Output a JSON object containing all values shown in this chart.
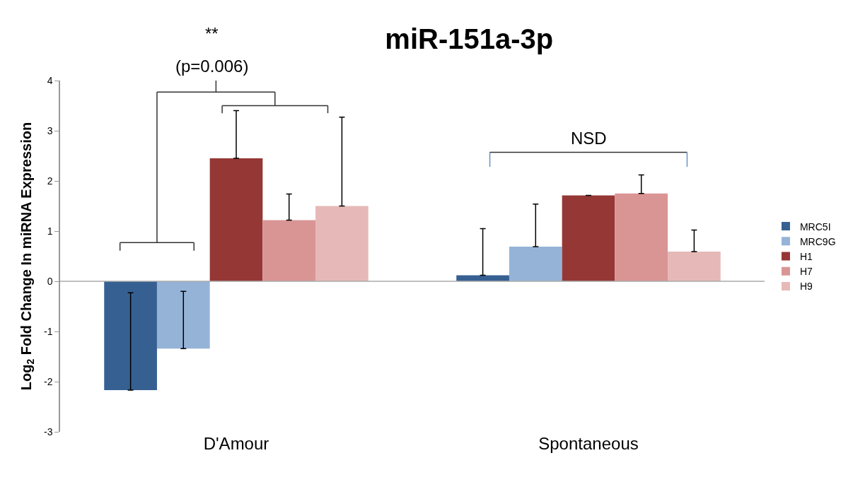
{
  "chart_data": {
    "type": "bar",
    "title": "miR-151a-3p",
    "ylabel": "Log$_{2}$ Fold Change In miRNA Expression",
    "categories": [
      "D'Amour",
      "Spontaneous"
    ],
    "series": [
      {
        "name": "MRC5I",
        "color": "#376092",
        "values": [
          -2.17,
          0.12
        ],
        "errors": [
          [
            -2.17,
            -0.23
          ],
          [
            0.12,
            1.05
          ]
        ]
      },
      {
        "name": "MRC9G",
        "color": "#95b3d7",
        "values": [
          -1.34,
          0.69
        ],
        "errors": [
          [
            -1.34,
            -0.2
          ],
          [
            0.69,
            1.54
          ]
        ]
      },
      {
        "name": "H1",
        "color": "#953735",
        "values": [
          2.45,
          1.71
        ],
        "errors": [
          [
            2.45,
            3.4
          ],
          null
        ]
      },
      {
        "name": "H7",
        "color": "#d99594",
        "values": [
          1.22,
          1.75
        ],
        "errors": [
          [
            1.22,
            1.74
          ],
          [
            1.75,
            2.12
          ]
        ]
      },
      {
        "name": "H9",
        "color": "#e6b9b8",
        "values": [
          1.5,
          0.59
        ],
        "errors": [
          [
            1.5,
            3.27
          ],
          [
            0.59,
            1.02
          ]
        ]
      }
    ],
    "ref_lines": [
      {
        "axis": "y",
        "value": 0,
        "color": "#aaaaaa"
      }
    ],
    "ylim": [
      -3,
      4
    ],
    "yticks": [
      -3,
      -2,
      -1,
      0,
      1,
      2,
      3,
      4
    ],
    "grid": false,
    "legend": "right",
    "annotations": [
      "**",
      "(p=0.006)",
      "NSD"
    ]
  }
}
